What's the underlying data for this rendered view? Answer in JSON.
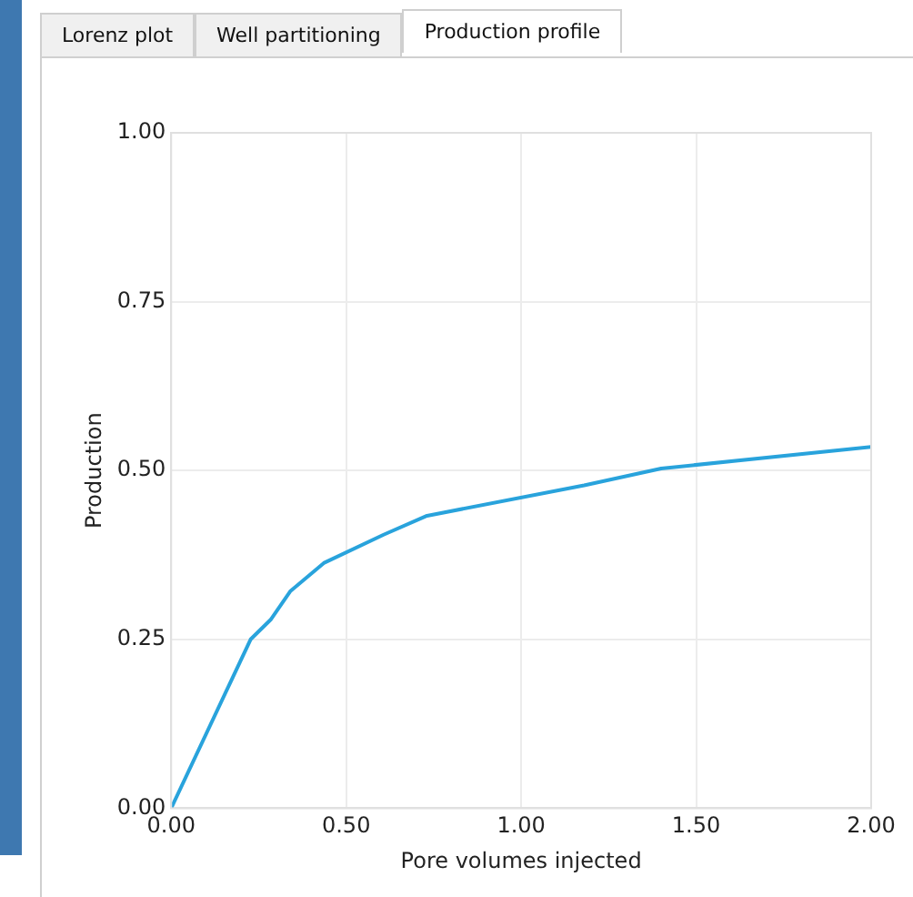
{
  "chart_data": {
    "type": "line",
    "xlabel": "Pore volumes injected",
    "ylabel": "Production",
    "annotations": [
      "Lorenz plot",
      "Well partitioning",
      "Production profile"
    ],
    "series": [
      {
        "color": "#29a3dc",
        "x": [
          0,
          0.227,
          0.284,
          0.34,
          0.436,
          0.607,
          0.731,
          1.18,
          1.4,
          2.0
        ],
        "values": [
          0,
          0.25,
          0.279,
          0.321,
          0.363,
          0.405,
          0.433,
          0.478,
          0.503,
          0.535
        ]
      }
    ],
    "xlim": [
      0,
      2
    ],
    "ylim": [
      0,
      1
    ],
    "xticks": [
      {
        "value": 0,
        "label": "0.00"
      },
      {
        "value": 0.5,
        "label": "0.50"
      },
      {
        "value": 1,
        "label": "1.00"
      },
      {
        "value": 1.5,
        "label": "1.50"
      },
      {
        "value": 2,
        "label": "2.00"
      }
    ],
    "yticks": [
      {
        "value": 0,
        "label": "0.00"
      },
      {
        "value": 0.25,
        "label": "0.25"
      },
      {
        "value": 0.5,
        "label": "0.50"
      },
      {
        "value": 0.75,
        "label": "0.75"
      },
      {
        "value": 1,
        "label": "1.00"
      }
    ],
    "grid": true,
    "legend": false,
    "marker": "none",
    "line_style": "solid"
  }
}
